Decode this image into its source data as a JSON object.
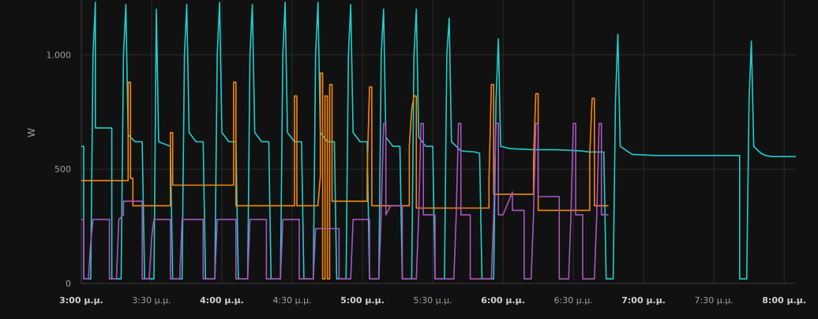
{
  "chart_data": {
    "type": "line",
    "ylabel": "W",
    "ylim": [
      0,
      1240
    ],
    "xlim": [
      "15:00",
      "20:05"
    ],
    "y_ticks": [
      {
        "value": 0,
        "label": "0"
      },
      {
        "value": 500,
        "label": "500"
      },
      {
        "value": 1000,
        "label": "1.000"
      }
    ],
    "x_ticks": [
      {
        "value": "15:00",
        "label": "3:00 µ.µ.",
        "bold": true
      },
      {
        "value": "15:30",
        "label": "3:30 µ.µ.",
        "bold": false
      },
      {
        "value": "16:00",
        "label": "4:00 µ.µ.",
        "bold": true
      },
      {
        "value": "16:30",
        "label": "4:30 µ.µ.",
        "bold": false
      },
      {
        "value": "17:00",
        "label": "5:00 µ.µ.",
        "bold": true
      },
      {
        "value": "17:30",
        "label": "5:30 µ.µ.",
        "bold": false
      },
      {
        "value": "18:00",
        "label": "6:00 µ.µ.",
        "bold": true
      },
      {
        "value": "18:30",
        "label": "6:30 µ.µ.",
        "bold": false
      },
      {
        "value": "19:00",
        "label": "7:00 µ.µ.",
        "bold": true
      },
      {
        "value": "19:30",
        "label": "7:30 µ.µ.",
        "bold": false
      },
      {
        "value": "20:00",
        "label": "8:00 µ.µ.",
        "bold": true
      }
    ],
    "grid": true,
    "colors": [
      "#1ecfcf",
      "#f5870a",
      "#a855c0"
    ],
    "series": [
      {
        "color": "#1ecfcf",
        "points": [
          [
            "15:00",
            600
          ],
          [
            "15:01",
            600
          ],
          [
            "15:01",
            20
          ],
          [
            "15:04",
            20
          ],
          [
            "15:05",
            1000
          ],
          [
            "15:06",
            1230
          ],
          [
            "15:06",
            680
          ],
          [
            "15:13",
            680
          ],
          [
            "15:13",
            20
          ],
          [
            "15:17",
            20
          ],
          [
            "15:18",
            1000
          ],
          [
            "15:19",
            1220
          ],
          [
            "15:20",
            650
          ],
          [
            "15:23",
            620
          ],
          [
            "15:26",
            620
          ],
          [
            "15:27",
            20
          ],
          [
            "15:31",
            20
          ],
          [
            "15:32",
            1200
          ],
          [
            "15:33",
            620
          ],
          [
            "15:38",
            600
          ],
          [
            "15:39",
            20
          ],
          [
            "15:43",
            20
          ],
          [
            "15:44",
            1000
          ],
          [
            "15:45",
            1220
          ],
          [
            "15:46",
            660
          ],
          [
            "15:49",
            620
          ],
          [
            "15:52",
            620
          ],
          [
            "15:53",
            20
          ],
          [
            "15:57",
            20
          ],
          [
            "15:58",
            1000
          ],
          [
            "15:59",
            1230
          ],
          [
            "16:00",
            660
          ],
          [
            "16:03",
            620
          ],
          [
            "16:06",
            620
          ],
          [
            "16:07",
            20
          ],
          [
            "16:11",
            20
          ],
          [
            "16:12",
            1000
          ],
          [
            "16:13",
            1220
          ],
          [
            "16:14",
            660
          ],
          [
            "16:17",
            620
          ],
          [
            "16:20",
            620
          ],
          [
            "16:21",
            20
          ],
          [
            "16:25",
            20
          ],
          [
            "16:26",
            1000
          ],
          [
            "16:27",
            1230
          ],
          [
            "16:28",
            660
          ],
          [
            "16:31",
            620
          ],
          [
            "16:34",
            620
          ],
          [
            "16:35",
            20
          ],
          [
            "16:39",
            20
          ],
          [
            "16:40",
            1000
          ],
          [
            "16:41",
            1230
          ],
          [
            "16:42",
            660
          ],
          [
            "16:45",
            620
          ],
          [
            "16:48",
            620
          ],
          [
            "16:49",
            20
          ],
          [
            "16:53",
            20
          ],
          [
            "16:54",
            1000
          ],
          [
            "16:55",
            1220
          ],
          [
            "16:56",
            660
          ],
          [
            "16:59",
            620
          ],
          [
            "17:02",
            620
          ],
          [
            "17:03",
            20
          ],
          [
            "17:07",
            20
          ],
          [
            "17:08",
            1000
          ],
          [
            "17:09",
            1200
          ],
          [
            "17:10",
            640
          ],
          [
            "17:13",
            600
          ],
          [
            "17:16",
            600
          ],
          [
            "17:17",
            20
          ],
          [
            "17:21",
            20
          ],
          [
            "17:22",
            1000
          ],
          [
            "17:23",
            1200
          ],
          [
            "17:24",
            640
          ],
          [
            "17:27",
            600
          ],
          [
            "17:30",
            600
          ],
          [
            "17:31",
            20
          ],
          [
            "17:35",
            20
          ],
          [
            "17:36",
            1000
          ],
          [
            "17:37",
            1160
          ],
          [
            "17:38",
            620
          ],
          [
            "17:42",
            580
          ],
          [
            "17:48",
            575
          ],
          [
            "17:50",
            570
          ],
          [
            "17:51",
            20
          ],
          [
            "17:56",
            20
          ],
          [
            "17:57",
            800
          ],
          [
            "17:58",
            1070
          ],
          [
            "17:59",
            600
          ],
          [
            "18:03",
            590
          ],
          [
            "18:13",
            585
          ],
          [
            "18:23",
            585
          ],
          [
            "18:33",
            580
          ],
          [
            "18:37",
            575
          ],
          [
            "18:43",
            575
          ],
          [
            "18:44",
            20
          ],
          [
            "18:47",
            20
          ],
          [
            "18:48",
            800
          ],
          [
            "18:49",
            1090
          ],
          [
            "18:50",
            600
          ],
          [
            "18:55",
            565
          ],
          [
            "19:05",
            560
          ],
          [
            "19:15",
            560
          ],
          [
            "19:30",
            560
          ],
          [
            "19:41",
            560
          ],
          [
            "19:41",
            20
          ],
          [
            "19:44",
            20
          ],
          [
            "19:45",
            800
          ],
          [
            "19:46",
            1060
          ],
          [
            "19:47",
            600
          ],
          [
            "19:50",
            570
          ],
          [
            "19:52",
            560
          ],
          [
            "19:55",
            555
          ],
          [
            "20:00",
            555
          ],
          [
            "20:05",
            555
          ]
        ]
      },
      {
        "color": "#f5870a",
        "points": [
          [
            "15:00",
            450
          ],
          [
            "15:20",
            450
          ],
          [
            "15:20",
            880
          ],
          [
            "15:21",
            880
          ],
          [
            "15:21",
            460
          ],
          [
            "15:22",
            460
          ],
          [
            "15:22",
            340
          ],
          [
            "15:38",
            340
          ],
          [
            "15:38",
            430
          ],
          [
            "15:38",
            660
          ],
          [
            "15:39",
            660
          ],
          [
            "15:39",
            430
          ],
          [
            "16:05",
            430
          ],
          [
            "16:05",
            880
          ],
          [
            "16:06",
            880
          ],
          [
            "16:06",
            340
          ],
          [
            "16:31",
            340
          ],
          [
            "16:31",
            820
          ],
          [
            "16:32",
            820
          ],
          [
            "16:32",
            340
          ],
          [
            "16:41",
            340
          ],
          [
            "16:42",
            470
          ],
          [
            "16:42",
            920
          ],
          [
            "16:43",
            920
          ],
          [
            "16:43",
            20
          ],
          [
            "16:44",
            20
          ],
          [
            "16:44",
            820
          ],
          [
            "16:45",
            820
          ],
          [
            "16:45",
            20
          ],
          [
            "16:46",
            20
          ],
          [
            "16:46",
            870
          ],
          [
            "16:47",
            870
          ],
          [
            "16:47",
            360
          ],
          [
            "17:02",
            360
          ],
          [
            "17:02",
            480
          ],
          [
            "17:03",
            860
          ],
          [
            "17:04",
            860
          ],
          [
            "17:04",
            340
          ],
          [
            "17:20",
            340
          ],
          [
            "17:20",
            600
          ],
          [
            "17:21",
            760
          ],
          [
            "17:22",
            820
          ],
          [
            "17:23",
            820
          ],
          [
            "17:23",
            330
          ],
          [
            "17:40",
            330
          ],
          [
            "17:45",
            330
          ],
          [
            "17:54",
            330
          ],
          [
            "17:54",
            450
          ],
          [
            "17:55",
            870
          ],
          [
            "17:56",
            870
          ],
          [
            "17:56",
            390
          ],
          [
            "18:13",
            390
          ],
          [
            "18:13",
            540
          ],
          [
            "18:14",
            830
          ],
          [
            "18:15",
            830
          ],
          [
            "18:15",
            320
          ],
          [
            "18:31",
            320
          ],
          [
            "18:37",
            320
          ],
          [
            "18:37",
            560
          ],
          [
            "18:38",
            810
          ],
          [
            "18:39",
            810
          ],
          [
            "18:39",
            340
          ],
          [
            "18:45",
            340
          ]
        ]
      },
      {
        "color": "#a855c0",
        "points": [
          [
            "15:00",
            280
          ],
          [
            "15:01",
            280
          ],
          [
            "15:01",
            20
          ],
          [
            "15:03",
            20
          ],
          [
            "15:04",
            180
          ],
          [
            "15:05",
            280
          ],
          [
            "15:12",
            280
          ],
          [
            "15:12",
            20
          ],
          [
            "15:15",
            20
          ],
          [
            "15:16",
            280
          ],
          [
            "15:18",
            300
          ],
          [
            "15:18",
            360
          ],
          [
            "15:26",
            360
          ],
          [
            "15:26",
            20
          ],
          [
            "15:29",
            20
          ],
          [
            "15:30",
            200
          ],
          [
            "15:31",
            280
          ],
          [
            "15:38",
            280
          ],
          [
            "15:38",
            20
          ],
          [
            "15:42",
            20
          ],
          [
            "15:43",
            280
          ],
          [
            "15:52",
            280
          ],
          [
            "15:52",
            20
          ],
          [
            "15:57",
            20
          ],
          [
            "15:58",
            280
          ],
          [
            "16:06",
            280
          ],
          [
            "16:06",
            20
          ],
          [
            "16:11",
            20
          ],
          [
            "16:12",
            280
          ],
          [
            "16:19",
            280
          ],
          [
            "16:19",
            20
          ],
          [
            "16:25",
            20
          ],
          [
            "16:26",
            280
          ],
          [
            "16:33",
            280
          ],
          [
            "16:33",
            20
          ],
          [
            "16:39",
            20
          ],
          [
            "16:40",
            240
          ],
          [
            "16:50",
            240
          ],
          [
            "16:50",
            20
          ],
          [
            "16:55",
            20
          ],
          [
            "16:56",
            280
          ],
          [
            "17:03",
            280
          ],
          [
            "17:03",
            20
          ],
          [
            "17:07",
            20
          ],
          [
            "17:08",
            300
          ],
          [
            "17:09",
            700
          ],
          [
            "17:10",
            700
          ],
          [
            "17:10",
            300
          ],
          [
            "17:12",
            340
          ],
          [
            "17:17",
            340
          ],
          [
            "17:17",
            20
          ],
          [
            "17:23",
            20
          ],
          [
            "17:24",
            300
          ],
          [
            "17:25",
            700
          ],
          [
            "17:26",
            700
          ],
          [
            "17:26",
            300
          ],
          [
            "17:31",
            300
          ],
          [
            "17:31",
            20
          ],
          [
            "17:39",
            20
          ],
          [
            "17:40",
            300
          ],
          [
            "17:41",
            700
          ],
          [
            "17:42",
            700
          ],
          [
            "17:42",
            300
          ],
          [
            "17:46",
            300
          ],
          [
            "17:46",
            20
          ],
          [
            "17:55",
            20
          ],
          [
            "17:56",
            300
          ],
          [
            "17:57",
            700
          ],
          [
            "17:58",
            700
          ],
          [
            "17:58",
            300
          ],
          [
            "18:00",
            300
          ],
          [
            "18:04",
            400
          ],
          [
            "18:04",
            320
          ],
          [
            "18:09",
            320
          ],
          [
            "18:09",
            20
          ],
          [
            "18:12",
            20
          ],
          [
            "18:13",
            300
          ],
          [
            "18:14",
            700
          ],
          [
            "18:15",
            700
          ],
          [
            "18:15",
            380
          ],
          [
            "18:24",
            380
          ],
          [
            "18:24",
            20
          ],
          [
            "18:28",
            20
          ],
          [
            "18:29",
            300
          ],
          [
            "18:30",
            700
          ],
          [
            "18:31",
            700
          ],
          [
            "18:31",
            300
          ],
          [
            "18:34",
            300
          ],
          [
            "18:34",
            20
          ],
          [
            "18:39",
            20
          ],
          [
            "18:40",
            300
          ],
          [
            "18:41",
            700
          ],
          [
            "18:42",
            700
          ],
          [
            "18:42",
            300
          ],
          [
            "18:45",
            300
          ]
        ]
      }
    ]
  }
}
